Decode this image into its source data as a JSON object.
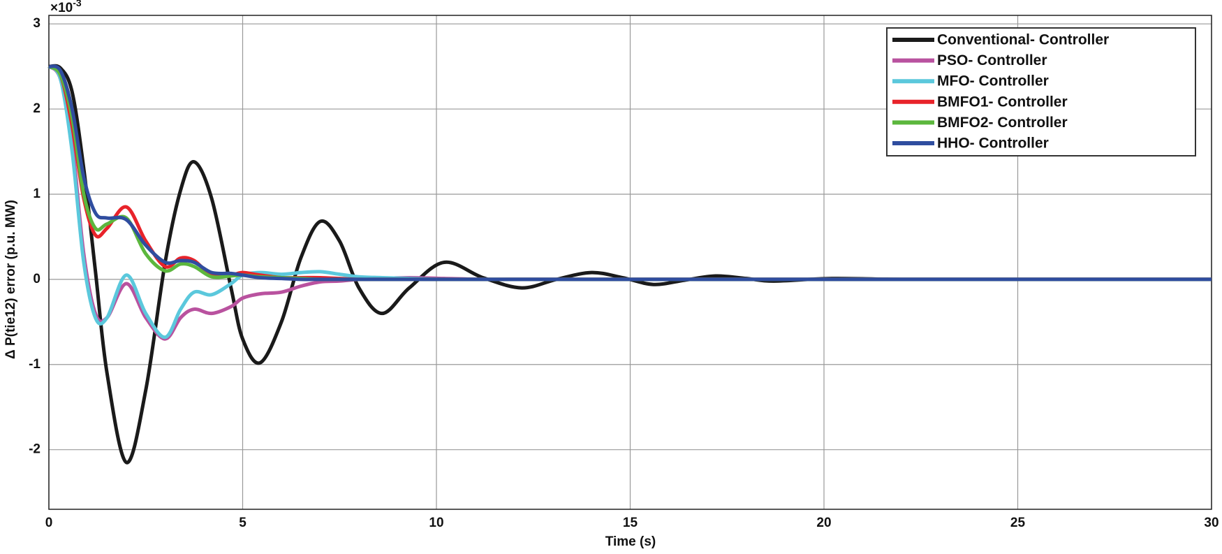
{
  "chart_data": {
    "type": "line",
    "xlabel": "Time (s)",
    "ylabel": "Δ P(tie12) error (p.u. MW)",
    "y_multiplier": "×10",
    "y_multiplier_exponent": "-3",
    "x": [
      0,
      0.3,
      0.6,
      0.9,
      1.2,
      1.5,
      2,
      2.5,
      3,
      3.4,
      3.75,
      4.2,
      4.7,
      5.0,
      5.45,
      6,
      6.5,
      7,
      7.5,
      8,
      8.6,
      9.3,
      10.2,
      11.2,
      12.2,
      13.1,
      14,
      14.8,
      15.6,
      16.4,
      17.2,
      18,
      18.7,
      20.2,
      22,
      25,
      30
    ],
    "series": [
      {
        "name": "Conventional- Controller",
        "color": "#1a1a1a",
        "values": [
          2.5,
          2.48,
          2.2,
          1.3,
          0.1,
          -1.1,
          -2.15,
          -1.3,
          0.2,
          1.05,
          1.38,
          0.95,
          -0.1,
          -0.7,
          -0.98,
          -0.5,
          0.25,
          0.68,
          0.45,
          -0.1,
          -0.4,
          -0.1,
          0.2,
          0.02,
          -0.1,
          0,
          0.08,
          0.02,
          -0.06,
          -0.01,
          0.04,
          0.01,
          -0.02,
          0.01,
          0,
          0,
          0
        ]
      },
      {
        "name": "PSO- Controller",
        "color": "#b9529f",
        "values": [
          2.5,
          2.35,
          1.6,
          0.3,
          -0.4,
          -0.45,
          -0.05,
          -0.45,
          -0.7,
          -0.45,
          -0.35,
          -0.4,
          -0.32,
          -0.22,
          -0.17,
          -0.15,
          -0.08,
          -0.03,
          -0.02,
          0,
          0.01,
          0.02,
          0.01,
          0,
          0,
          0,
          0,
          0,
          0,
          0,
          0,
          0,
          0,
          0,
          0,
          0,
          0
        ]
      },
      {
        "name": "MFO- Controller",
        "color": "#5bc8dc",
        "values": [
          2.5,
          2.35,
          1.5,
          0.2,
          -0.45,
          -0.45,
          0.05,
          -0.4,
          -0.68,
          -0.35,
          -0.15,
          -0.18,
          -0.05,
          0.05,
          0.08,
          0.06,
          0.08,
          0.09,
          0.06,
          0.03,
          0.02,
          0.01,
          0,
          0,
          0,
          0,
          0,
          0,
          0,
          0,
          0,
          0,
          0,
          0,
          0,
          0,
          0
        ]
      },
      {
        "name": "BMFO1- Controller",
        "color": "#e8232a",
        "values": [
          2.5,
          2.4,
          1.8,
          0.95,
          0.52,
          0.6,
          0.85,
          0.45,
          0.15,
          0.25,
          0.22,
          0.05,
          0.05,
          0.08,
          0.05,
          0.02,
          0.02,
          0.02,
          0.01,
          0,
          0,
          0,
          0,
          0,
          0,
          0,
          0,
          0,
          0,
          0,
          0,
          0,
          0,
          0,
          0,
          0,
          0
        ]
      },
      {
        "name": "BMFO2- Controller",
        "color": "#5cb73d",
        "values": [
          2.5,
          2.4,
          1.9,
          1.0,
          0.6,
          0.65,
          0.72,
          0.3,
          0.1,
          0.18,
          0.15,
          0.03,
          0.04,
          0.05,
          0.03,
          0.02,
          0.01,
          0,
          0,
          0,
          0,
          0,
          0,
          0,
          0,
          0,
          0,
          0,
          0,
          0,
          0,
          0,
          0,
          0,
          0,
          0,
          0
        ]
      },
      {
        "name": "HHO- Controller",
        "color": "#2f4d9f",
        "values": [
          2.5,
          2.45,
          2.0,
          1.2,
          0.78,
          0.72,
          0.7,
          0.4,
          0.2,
          0.22,
          0.2,
          0.08,
          0.07,
          0.05,
          0.02,
          0.01,
          0,
          0,
          0,
          0,
          0,
          0,
          0,
          0,
          0,
          0,
          0,
          0,
          0,
          0,
          0,
          0,
          0,
          0,
          0,
          0,
          0
        ]
      }
    ],
    "xlim": [
      0,
      30
    ],
    "xticks": [
      0,
      5,
      10,
      15,
      20,
      25,
      30
    ],
    "ylim": [
      -2.7,
      3.1
    ],
    "yticks": [
      -2,
      -1,
      0,
      1,
      2,
      3
    ],
    "grid": true,
    "legend": "upper right"
  }
}
